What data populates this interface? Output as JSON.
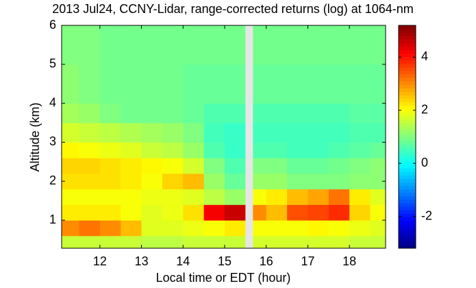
{
  "chart_data": {
    "type": "heatmap",
    "title": "2013 Jul24, CCNY-Lidar, range-corrected returns (log) at 1064-nm",
    "x_label": "Local time or EDT (hour)",
    "y_label": "Altitude (km)",
    "xbins": [
      11.08,
      11.5,
      12,
      12.5,
      13,
      13.5,
      14,
      14.5,
      15,
      15.5,
      15.68,
      16,
      16.5,
      17,
      17.5,
      18,
      18.5,
      18.87
    ],
    "ybins": [
      0.28,
      0.6,
      1,
      1.4,
      1.8,
      2.2,
      2.6,
      3,
      3.5,
      4,
      5,
      6
    ],
    "z": [
      [
        1.6,
        1.6,
        1.6,
        1.6,
        1.5,
        1.5,
        1.6,
        1.6,
        1.6,
        null,
        1.7,
        1.7,
        1.7,
        1.7,
        1.7,
        1.6,
        1.6
      ],
      [
        3.0,
        3.2,
        3.0,
        2.6,
        1.8,
        1.8,
        1.9,
        2.0,
        2.2,
        null,
        2.0,
        2.0,
        2.0,
        2.1,
        2.0,
        1.9,
        1.8
      ],
      [
        2.2,
        2.2,
        2.2,
        2.0,
        1.8,
        1.9,
        2.3,
        4.2,
        4.6,
        null,
        3.0,
        2.6,
        3.5,
        3.6,
        3.8,
        2.4,
        2.0
      ],
      [
        2.0,
        2.0,
        2.0,
        2.0,
        1.9,
        1.9,
        1.8,
        1.5,
        1.2,
        null,
        2.0,
        2.2,
        2.6,
        2.8,
        3.2,
        2.2,
        1.8
      ],
      [
        2.3,
        2.3,
        2.3,
        2.2,
        2.0,
        2.4,
        2.6,
        1.2,
        0.8,
        null,
        1.2,
        1.2,
        1.0,
        1.0,
        1.0,
        1.1,
        1.1
      ],
      [
        2.4,
        2.4,
        2.3,
        2.2,
        2.1,
        2.0,
        1.7,
        1.0,
        0.6,
        null,
        1.0,
        1.0,
        0.8,
        0.8,
        0.9,
        1.0,
        1.1
      ],
      [
        2.1,
        2.0,
        1.9,
        1.8,
        1.6,
        1.5,
        1.2,
        0.6,
        0.4,
        null,
        0.6,
        0.6,
        0.5,
        0.5,
        0.6,
        0.7,
        0.8
      ],
      [
        1.7,
        1.6,
        1.5,
        1.4,
        1.3,
        1.2,
        1.0,
        0.5,
        0.4,
        null,
        0.5,
        0.5,
        0.5,
        0.5,
        0.5,
        0.6,
        0.6
      ],
      [
        1.3,
        1.2,
        1.0,
        0.9,
        0.9,
        0.9,
        0.8,
        0.6,
        0.6,
        null,
        0.6,
        0.6,
        0.6,
        0.6,
        0.6,
        0.7,
        0.7
      ],
      [
        1.1,
        1.0,
        0.9,
        0.9,
        0.9,
        0.9,
        0.8,
        0.8,
        0.8,
        null,
        0.8,
        0.8,
        0.8,
        0.8,
        0.8,
        0.8,
        0.8
      ],
      [
        1.0,
        1.0,
        0.9,
        0.9,
        0.9,
        0.9,
        0.9,
        0.9,
        0.9,
        null,
        0.9,
        0.9,
        0.9,
        0.9,
        0.9,
        0.9,
        0.9
      ]
    ],
    "xlim": [
      11.08,
      18.87
    ],
    "xticks": [
      12,
      13,
      14,
      15,
      16,
      17,
      18
    ],
    "ylim": [
      0.28,
      6
    ],
    "yticks": [
      1,
      2,
      3,
      4,
      5,
      6
    ],
    "clim": [
      -3.2,
      5.2
    ],
    "cticks": [
      -2,
      0,
      2,
      4
    ],
    "colormap": "jet",
    "gap_color": "#e6e6e6"
  }
}
